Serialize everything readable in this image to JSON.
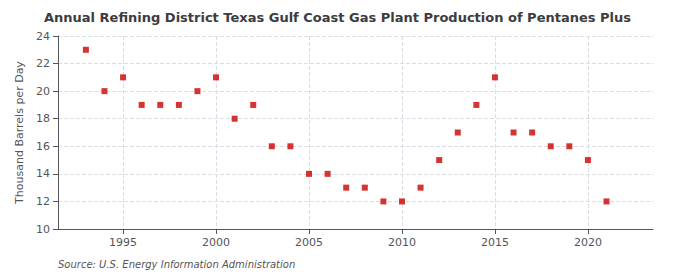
{
  "chart_data": {
    "type": "scatter",
    "title": "Annual Refining District Texas Gulf Coast Gas Plant Production of Pentanes Plus",
    "ylabel": "Thousand Barrels per Day",
    "source": "Source: U.S. Energy Information Administration",
    "x": [
      1993,
      1994,
      1995,
      1996,
      1997,
      1998,
      1999,
      2000,
      2001,
      2002,
      2003,
      2004,
      2005,
      2006,
      2007,
      2008,
      2009,
      2010,
      2011,
      2012,
      2013,
      2014,
      2015,
      2016,
      2017,
      2018,
      2019,
      2020,
      2021
    ],
    "values": [
      23.0,
      20.0,
      21.0,
      19.0,
      19.0,
      19.0,
      20.0,
      21.0,
      18.0,
      19.0,
      16.0,
      16.0,
      14.0,
      14.0,
      13.0,
      13.0,
      12.0,
      12.0,
      13.0,
      15.0,
      17.0,
      19.0,
      21.0,
      17.0,
      17.0,
      16.0,
      16.0,
      15.0,
      12.0
    ],
    "color": "#cc0000",
    "marker": "square",
    "xlim": [
      1991.5,
      2023.5
    ],
    "xticks": [
      1995,
      2000,
      2005,
      2010,
      2015,
      2020
    ],
    "ylim": [
      10,
      24
    ],
    "yticks": [
      10,
      12,
      14,
      16,
      18,
      20,
      22,
      24
    ],
    "grid": true
  }
}
